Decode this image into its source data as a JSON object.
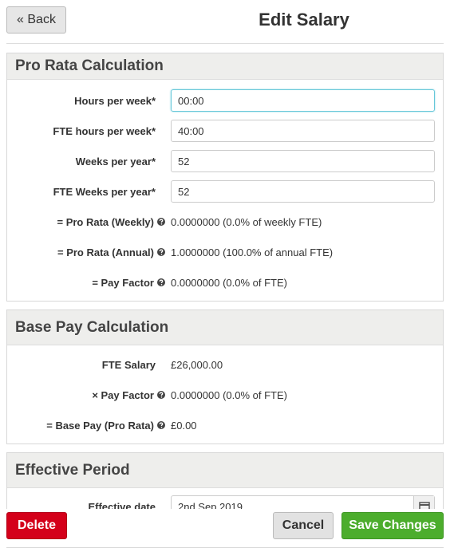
{
  "header": {
    "back": "« Back",
    "title": "Edit Salary"
  },
  "sections": [
    {
      "title": "Pro Rata Calculation",
      "fields": [
        {
          "label": "Hours per week*",
          "value": "00:00"
        },
        {
          "label": "FTE hours per week*",
          "value": "40:00"
        },
        {
          "label": "Weeks per year*",
          "value": "52"
        },
        {
          "label": "FTE Weeks per year*",
          "value": "52"
        },
        {
          "label": "= Pro Rata (Weekly)",
          "value": "0.0000000 (0.0% of weekly FTE)"
        },
        {
          "label": "= Pro Rata (Annual)",
          "value": "1.0000000 (100.0% of annual FTE)"
        },
        {
          "label": "= Pay Factor",
          "value": "0.0000000 (0.0% of FTE)"
        }
      ]
    },
    {
      "title": "Base Pay Calculation",
      "fields": [
        {
          "label": "FTE Salary",
          "value": "£26,000.00"
        },
        {
          "label": "× Pay Factor",
          "value": "0.0000000 (0.0% of FTE)"
        },
        {
          "label": "= Base Pay (Pro Rata)",
          "value": "£0.00"
        }
      ]
    },
    {
      "title": "Effective Period",
      "fields": [
        {
          "label": "Effective date",
          "value": "2nd Sep 2019"
        }
      ]
    }
  ],
  "footer": {
    "delete": "Delete",
    "cancel": "Cancel",
    "save": "Save Changes"
  }
}
